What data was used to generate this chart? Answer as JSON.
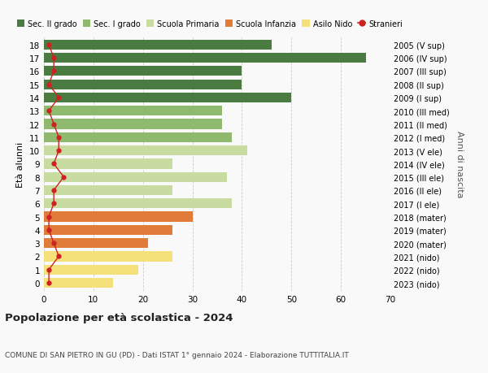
{
  "ages": [
    0,
    1,
    2,
    3,
    4,
    5,
    6,
    7,
    8,
    9,
    10,
    11,
    12,
    13,
    14,
    15,
    16,
    17,
    18
  ],
  "right_labels": [
    "2023 (nido)",
    "2022 (nido)",
    "2021 (nido)",
    "2020 (mater)",
    "2019 (mater)",
    "2018 (mater)",
    "2017 (I ele)",
    "2016 (II ele)",
    "2015 (III ele)",
    "2014 (IV ele)",
    "2013 (V ele)",
    "2012 (I med)",
    "2011 (II med)",
    "2010 (III med)",
    "2009 (I sup)",
    "2008 (II sup)",
    "2007 (III sup)",
    "2006 (IV sup)",
    "2005 (V sup)"
  ],
  "bar_values": [
    14,
    19,
    26,
    21,
    26,
    30,
    38,
    26,
    37,
    26,
    41,
    38,
    36,
    36,
    50,
    40,
    40,
    65,
    46
  ],
  "bar_colors": [
    "#f5e17a",
    "#f5e17a",
    "#f5e17a",
    "#e07b3a",
    "#e07b3a",
    "#e07b3a",
    "#c8dba0",
    "#c8dba0",
    "#c8dba0",
    "#c8dba0",
    "#c8dba0",
    "#8fba6e",
    "#8fba6e",
    "#8fba6e",
    "#4a7c41",
    "#4a7c41",
    "#4a7c41",
    "#4a7c41",
    "#4a7c41"
  ],
  "stranieri_values": [
    1,
    1,
    3,
    2,
    1,
    1,
    2,
    2,
    4,
    2,
    3,
    3,
    2,
    1,
    3,
    1,
    2,
    2,
    1
  ],
  "xlim": [
    0,
    70
  ],
  "ylabel": "Età alunni",
  "right_ylabel": "Anni di nascita",
  "title": "Popolazione per età scolastica - 2024",
  "subtitle": "COMUNE DI SAN PIETRO IN GU (PD) - Dati ISTAT 1° gennaio 2024 - Elaborazione TUTTITALIA.IT",
  "legend_labels": [
    "Sec. II grado",
    "Sec. I grado",
    "Scuola Primaria",
    "Scuola Infanzia",
    "Asilo Nido",
    "Stranieri"
  ],
  "legend_colors": [
    "#4a7c41",
    "#8fba6e",
    "#c8dba0",
    "#e07b3a",
    "#f5e17a",
    "#cc2222"
  ],
  "stranieri_color": "#cc2222",
  "bg_color": "#f9f9f9",
  "bar_height": 0.75,
  "grid_color": "#cccccc"
}
